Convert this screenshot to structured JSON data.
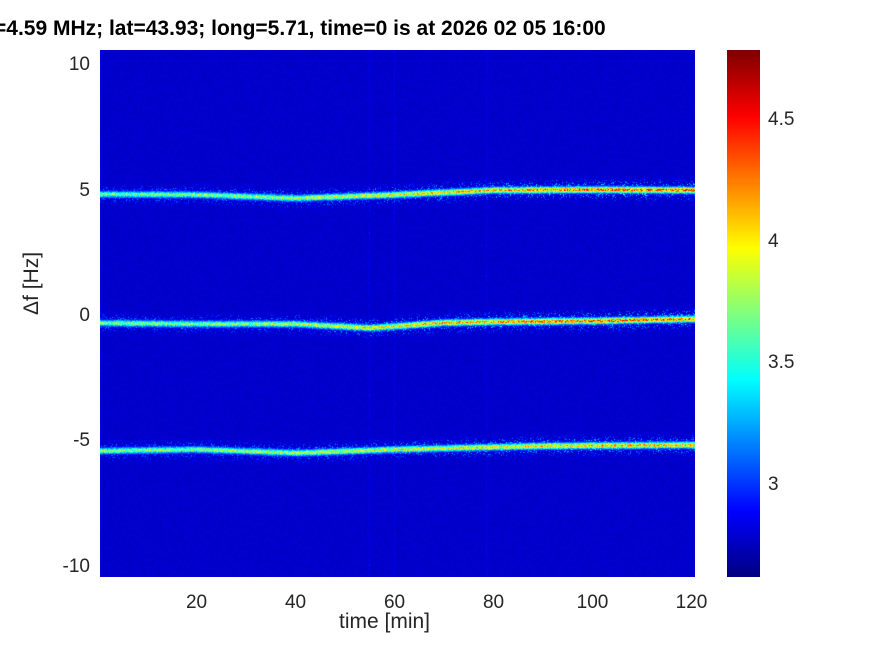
{
  "chart_data": {
    "type": "heatmap",
    "title": "=4.59 MHz;  lat=43.93; long=5.71, time=0 is at 2026 02 05 16:00",
    "xlabel": "time [min]",
    "ylabel": "Δf [Hz]",
    "xlim": [
      0.5,
      120.7
    ],
    "ylim": [
      -10.4,
      10.6
    ],
    "xticks": [
      20,
      40,
      60,
      80,
      100,
      120
    ],
    "yticks": [
      -10,
      -5,
      0,
      5,
      10
    ],
    "colorbar": {
      "clim": [
        2.62,
        4.79
      ],
      "ticks": [
        3,
        3.5,
        4,
        4.5
      ],
      "colormap": "jet"
    },
    "background_level": 2.65,
    "traces": [
      {
        "time": [
          0,
          20,
          40,
          60,
          80,
          100,
          120
        ],
        "freq": [
          4.87,
          4.85,
          4.71,
          4.85,
          5.03,
          5.05,
          5.03
        ],
        "peak_level": [
          3.8,
          3.9,
          4.0,
          4.2,
          4.4,
          4.6,
          4.6
        ]
      },
      {
        "time": [
          0,
          20,
          40,
          55,
          70,
          85,
          100,
          120
        ],
        "freq": [
          -0.26,
          -0.3,
          -0.3,
          -0.46,
          -0.25,
          -0.2,
          -0.18,
          -0.1
        ],
        "peak_level": [
          3.9,
          3.9,
          4.0,
          4.2,
          4.4,
          4.5,
          4.6,
          4.5
        ]
      },
      {
        "time": [
          0,
          20,
          40,
          60,
          90,
          120
        ],
        "freq": [
          -5.36,
          -5.3,
          -5.44,
          -5.3,
          -5.16,
          -5.12
        ],
        "peak_level": [
          3.9,
          3.9,
          4.0,
          4.1,
          4.3,
          4.4
        ]
      }
    ]
  }
}
